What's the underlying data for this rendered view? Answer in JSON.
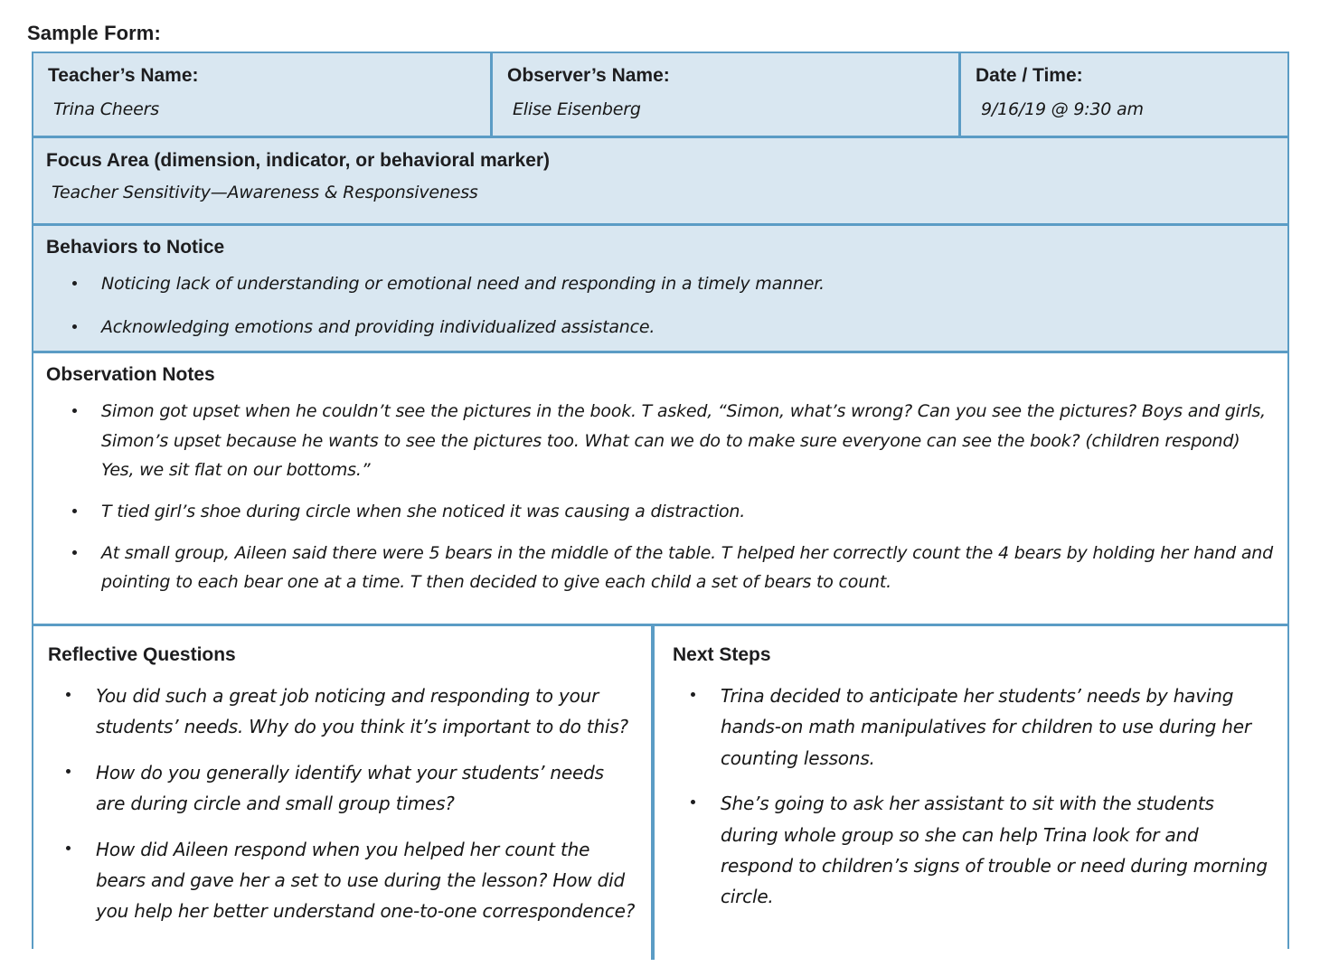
{
  "page_title": "Sample Form:",
  "colors": {
    "border": "#5b9cc5",
    "cell_bg": "#d9e7f1",
    "heading_text": "#1d1d1f"
  },
  "header_row": [
    {
      "label": "Teacher’s Name:",
      "value": "Trina Cheers"
    },
    {
      "label": "Observer’s Name:",
      "value": "Elise Eisenberg"
    },
    {
      "label": "Date / Time:",
      "value": "9/16/19 @ 9:30 am"
    }
  ],
  "focus_area": {
    "label": "Focus Area (dimension, indicator, or behavioral marker)",
    "value": "Teacher Sensitivity—Awareness & Responsiveness"
  },
  "behaviors_to_notice": {
    "title": "Behaviors to Notice",
    "items": [
      "Noticing lack of understanding or emotional need and responding in a timely manner.",
      "Acknowledging emotions and providing individualized assistance."
    ]
  },
  "observation_notes": {
    "title": "Observation Notes",
    "items": [
      "Simon got upset when he couldn’t see the pictures in the book. T asked, “Simon, what’s wrong? Can you see the pictures? Boys and girls, Simon’s upset because he wants to see the pictures too. What can we do to make sure everyone can see the book? (children respond) Yes, we sit flat on our bottoms.”",
      "T tied girl’s shoe during circle when she noticed it was causing a distraction.",
      "At small group, Aileen said there were 5 bears in the middle of the table. T helped her correctly count the 4 bears by holding her hand and pointing to each bear one at a time. T then decided to give each child a set of bears to count."
    ]
  },
  "reflective_questions": {
    "title": "Reflective Questions",
    "items": [
      "You did such a great job noticing and responding to your students’ needs. Why do you think it’s important to do this?",
      "How do you generally identify what your students’ needs are during circle and small group times?",
      "How did Aileen respond when you helped her count the bears and gave her a set to use during the lesson? How did you help her better understand one-to-one correspondence?"
    ]
  },
  "next_steps": {
    "title": "Next Steps",
    "items": [
      "Trina decided to anticipate her students’ needs by having hands-on math manipulatives for children to use during her counting lessons.",
      "She’s going to ask her assistant to sit with the students during whole group so she can help Trina look for and respond to children’s signs of trouble or need during morning circle."
    ]
  }
}
